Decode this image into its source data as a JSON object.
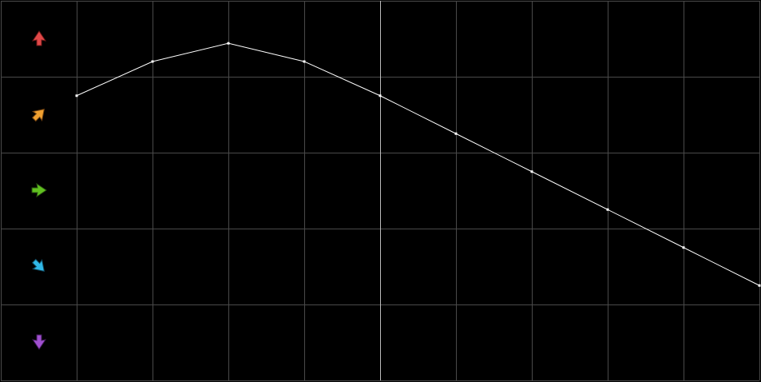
{
  "chart_data": {
    "type": "line",
    "x": [
      0,
      1,
      2,
      3,
      4,
      5,
      6,
      7,
      8,
      9
    ],
    "values": [
      3.75,
      4.2,
      4.44,
      4.2,
      3.75,
      3.25,
      2.75,
      2.25,
      1.75,
      1.25
    ],
    "color": "#ffffff",
    "xlim": [
      -1,
      9
    ],
    "xticks": [
      -1,
      0,
      1,
      2,
      3,
      4,
      5,
      6,
      7,
      8,
      9
    ],
    "ylim": [
      0,
      5
    ],
    "yticks": [
      0,
      1,
      2,
      3,
      4,
      5
    ],
    "grid": true,
    "highlight_x": 4
  }
}
